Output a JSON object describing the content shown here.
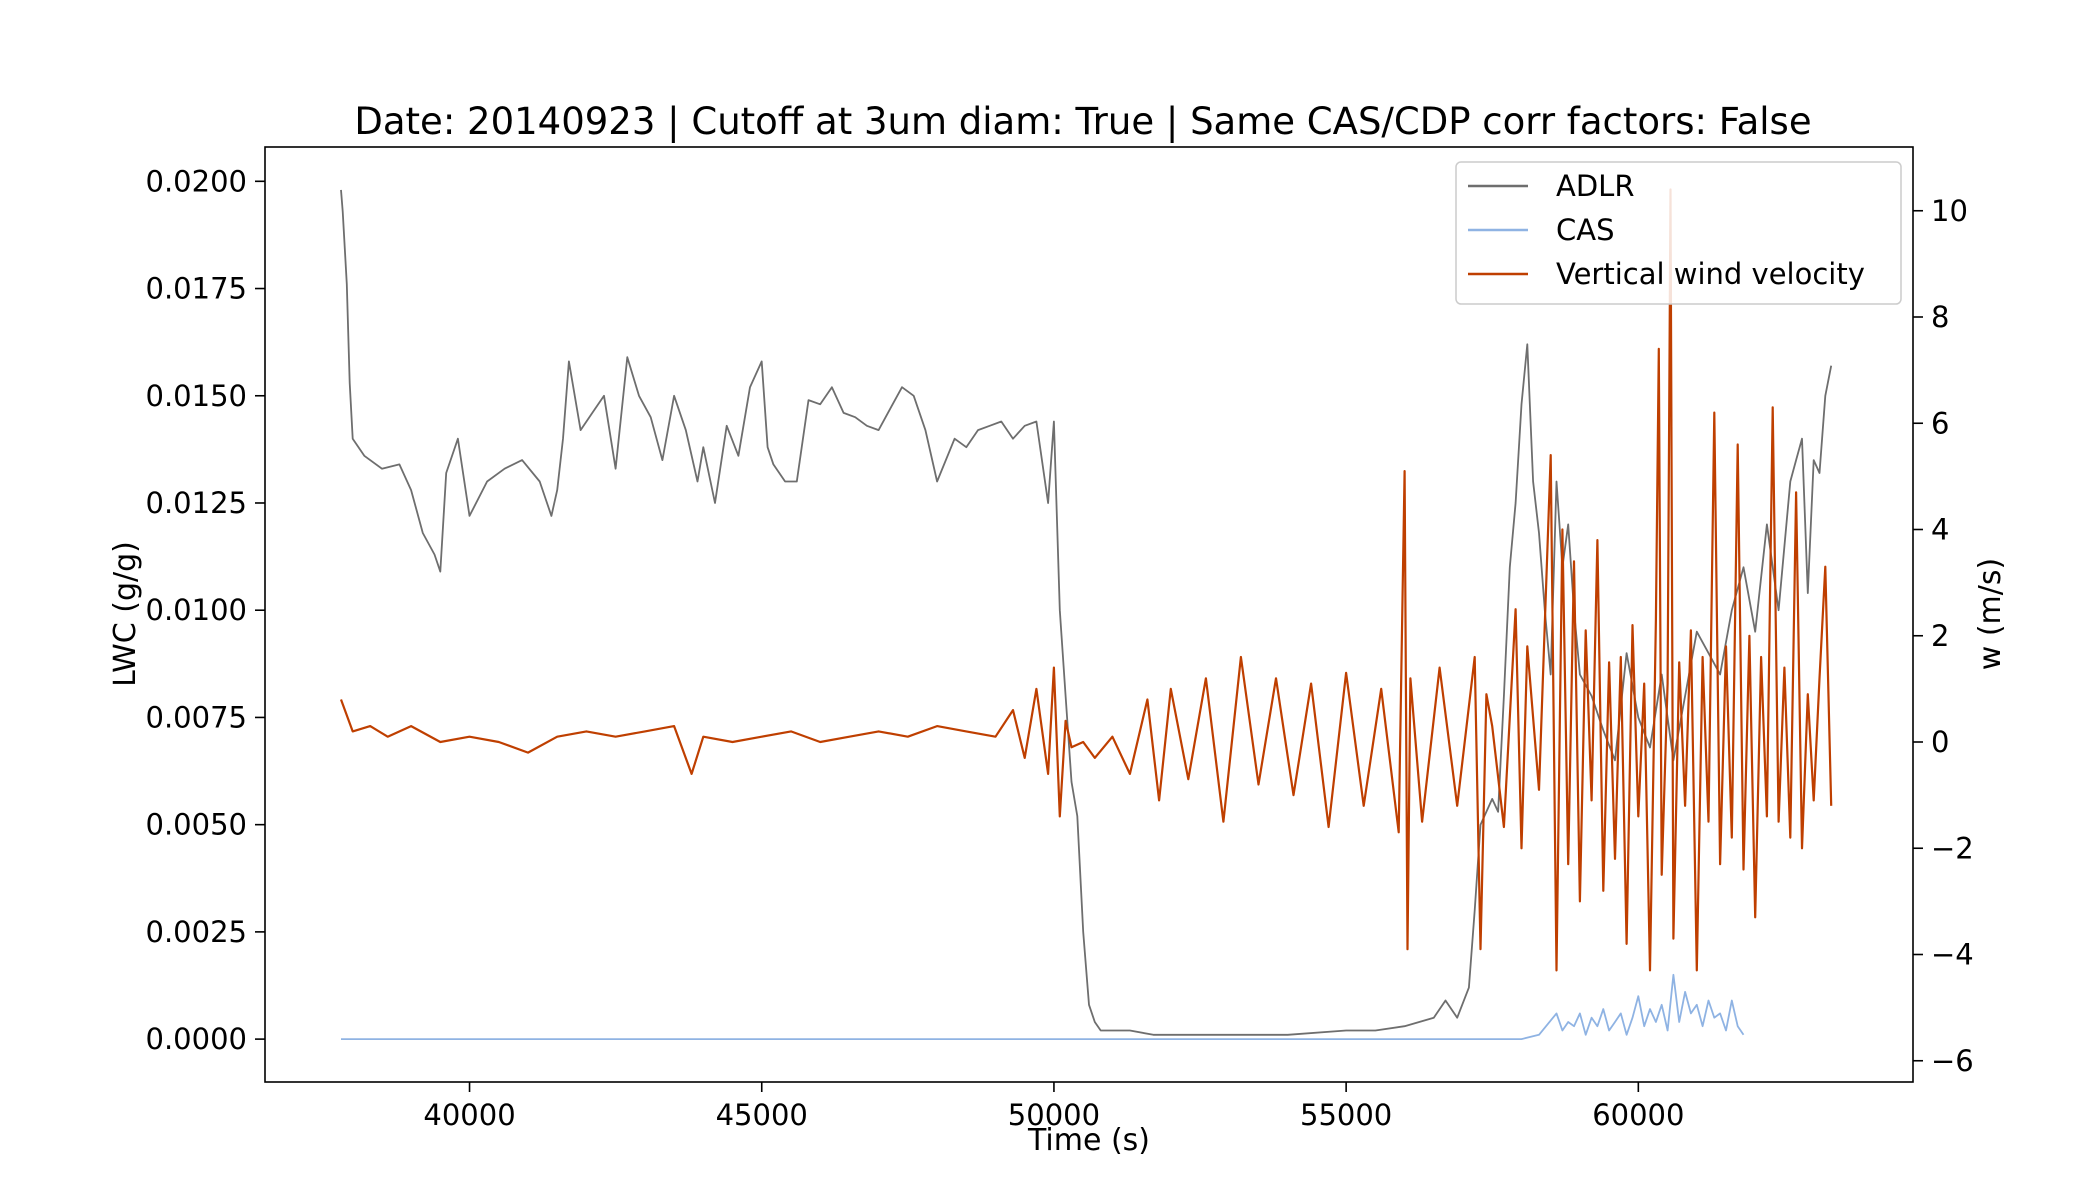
{
  "chart_data": {
    "type": "line",
    "title": "Date: 20140923 | Cutoff at 3um diam: True | Same CAS/CDP corr factors: False",
    "xlabel": "Time (s)",
    "ylabel": "LWC (g/g)",
    "y2label": "w (m/s)",
    "xlim": [
      36500,
      64700
    ],
    "ylim": [
      -0.001,
      0.0208
    ],
    "y2lim": [
      -6.4,
      11.2
    ],
    "x_ticks": [
      40000,
      45000,
      50000,
      55000,
      60000
    ],
    "x_tick_labels": [
      "40000",
      "45000",
      "50000",
      "55000",
      "60000"
    ],
    "y_ticks": [
      0.0,
      0.0025,
      0.005,
      0.0075,
      0.01,
      0.0125,
      0.015,
      0.0175,
      0.02
    ],
    "y_tick_labels": [
      "0.0000",
      "0.0025",
      "0.0050",
      "0.0075",
      "0.0100",
      "0.0125",
      "0.0150",
      "0.0175",
      "0.0200"
    ],
    "y2_ticks": [
      -6,
      -4,
      -2,
      0,
      2,
      4,
      6,
      8,
      10
    ],
    "y2_tick_labels": [
      "−6",
      "−4",
      "−2",
      "0",
      "2",
      "4",
      "6",
      "8",
      "10"
    ],
    "legend_position": "top-right",
    "grid": false,
    "series": [
      {
        "name": "ADLR",
        "axis": "left",
        "color": "#6e6e6e",
        "x": [
          37800,
          37830,
          37900,
          37950,
          38000,
          38200,
          38500,
          38800,
          39000,
          39200,
          39400,
          39500,
          39600,
          39800,
          40000,
          40300,
          40600,
          40900,
          41200,
          41400,
          41500,
          41600,
          41700,
          41900,
          42100,
          42300,
          42500,
          42700,
          42900,
          43100,
          43300,
          43500,
          43700,
          43900,
          44000,
          44200,
          44400,
          44600,
          44800,
          45000,
          45100,
          45200,
          45400,
          45600,
          45800,
          46000,
          46200,
          46400,
          46600,
          46800,
          47000,
          47200,
          47400,
          47600,
          47800,
          48000,
          48300,
          48500,
          48700,
          48900,
          49100,
          49300,
          49500,
          49700,
          49900,
          50000,
          50100,
          50200,
          50300,
          50400,
          50500,
          50600,
          50700,
          50800,
          51000,
          51300,
          51700,
          52000,
          53000,
          54000,
          55000,
          55500,
          56000,
          56500,
          56700,
          56900,
          57100,
          57200,
          57300,
          57500,
          57600,
          57700,
          57800,
          57900,
          58000,
          58100,
          58200,
          58300,
          58400,
          58500,
          58600,
          58700,
          58800,
          58900,
          59000,
          59200,
          59400,
          59600,
          59800,
          60000,
          60200,
          60400,
          60600,
          60800,
          61000,
          61200,
          61400,
          61600,
          61800,
          62000,
          62200,
          62400,
          62600,
          62700,
          62800,
          62900,
          63000,
          63100,
          63200,
          63300
        ],
        "values": [
          0.0198,
          0.0193,
          0.0176,
          0.0153,
          0.014,
          0.0136,
          0.0133,
          0.0134,
          0.0128,
          0.0118,
          0.0113,
          0.0109,
          0.0132,
          0.014,
          0.0122,
          0.013,
          0.0133,
          0.0135,
          0.013,
          0.0122,
          0.0128,
          0.014,
          0.0158,
          0.0142,
          0.0146,
          0.015,
          0.0133,
          0.0159,
          0.015,
          0.0145,
          0.0135,
          0.015,
          0.0142,
          0.013,
          0.0138,
          0.0125,
          0.0143,
          0.0136,
          0.0152,
          0.0158,
          0.0138,
          0.0134,
          0.013,
          0.013,
          0.0149,
          0.0148,
          0.0152,
          0.0146,
          0.0145,
          0.0143,
          0.0142,
          0.0147,
          0.0152,
          0.015,
          0.0142,
          0.013,
          0.014,
          0.0138,
          0.0142,
          0.0143,
          0.0144,
          0.014,
          0.0143,
          0.0144,
          0.0125,
          0.0144,
          0.01,
          0.008,
          0.006,
          0.0052,
          0.0025,
          0.0008,
          0.0004,
          0.0002,
          0.0002,
          0.0002,
          0.0001,
          0.0001,
          0.0001,
          0.0001,
          0.0002,
          0.0002,
          0.0003,
          0.0005,
          0.0009,
          0.0005,
          0.0012,
          0.003,
          0.005,
          0.0056,
          0.0053,
          0.008,
          0.011,
          0.0125,
          0.0148,
          0.0162,
          0.013,
          0.0118,
          0.01,
          0.0085,
          0.013,
          0.011,
          0.012,
          0.01,
          0.0085,
          0.008,
          0.0072,
          0.0065,
          0.009,
          0.0075,
          0.0068,
          0.0085,
          0.0065,
          0.008,
          0.0095,
          0.009,
          0.0085,
          0.01,
          0.011,
          0.0095,
          0.012,
          0.01,
          0.013,
          0.0135,
          0.014,
          0.0104,
          0.0135,
          0.0132,
          0.015,
          0.0157
        ]
      },
      {
        "name": "CAS",
        "axis": "left",
        "color": "#8fb3e3",
        "x": [
          37800,
          49000,
          50000,
          51000,
          52000,
          53000,
          54000,
          55000,
          56000,
          57000,
          57500,
          58000,
          58300,
          58600,
          58700,
          58800,
          58900,
          59000,
          59100,
          59200,
          59300,
          59400,
          59500,
          59600,
          59700,
          59800,
          59900,
          60000,
          60100,
          60200,
          60300,
          60400,
          60500,
          60600,
          60700,
          60800,
          60900,
          61000,
          61100,
          61200,
          61300,
          61400,
          61500,
          61600,
          61700,
          61800
        ],
        "values": [
          0.0,
          0.0,
          0.0,
          0.0,
          0.0,
          0.0,
          0.0,
          0.0,
          0.0,
          0.0,
          0.0,
          0.0,
          0.0001,
          0.0006,
          0.0002,
          0.0004,
          0.0003,
          0.0006,
          0.0001,
          0.0005,
          0.0003,
          0.0007,
          0.0002,
          0.0004,
          0.0006,
          0.0001,
          0.0005,
          0.001,
          0.0003,
          0.0007,
          0.0004,
          0.0008,
          0.0002,
          0.0015,
          0.0004,
          0.0011,
          0.0006,
          0.0008,
          0.0003,
          0.0009,
          0.0005,
          0.0006,
          0.0002,
          0.0009,
          0.0003,
          0.0001
        ]
      },
      {
        "name": "Vertical wind velocity",
        "axis": "right",
        "color": "#bf3f00",
        "x": [
          37800,
          38000,
          38300,
          38600,
          39000,
          39500,
          40000,
          40500,
          41000,
          41500,
          42000,
          42500,
          43000,
          43500,
          43800,
          44000,
          44500,
          45000,
          45500,
          46000,
          46500,
          47000,
          47500,
          48000,
          48500,
          49000,
          49300,
          49500,
          49700,
          49900,
          50000,
          50100,
          50200,
          50300,
          50500,
          50700,
          51000,
          51300,
          51600,
          51800,
          52000,
          52300,
          52600,
          52900,
          53200,
          53500,
          53800,
          54100,
          54400,
          54700,
          55000,
          55300,
          55600,
          55900,
          56000,
          56050,
          56100,
          56300,
          56600,
          56900,
          57200,
          57300,
          57400,
          57500,
          57700,
          57900,
          58000,
          58100,
          58300,
          58500,
          58600,
          58700,
          58800,
          58900,
          59000,
          59100,
          59200,
          59300,
          59400,
          59500,
          59600,
          59700,
          59800,
          59900,
          60000,
          60100,
          60200,
          60300,
          60350,
          60400,
          60500,
          60550,
          60600,
          60700,
          60800,
          60900,
          61000,
          61100,
          61200,
          61300,
          61400,
          61500,
          61600,
          61700,
          61800,
          61900,
          62000,
          62100,
          62200,
          62300,
          62400,
          62500,
          62600,
          62700,
          62800,
          62900,
          63000,
          63100,
          63200,
          63300
        ],
        "values": [
          0.8,
          0.2,
          0.3,
          0.1,
          0.3,
          0.0,
          0.1,
          0.0,
          -0.2,
          0.1,
          0.2,
          0.1,
          0.2,
          0.3,
          -0.6,
          0.1,
          0.0,
          0.1,
          0.2,
          0.0,
          0.1,
          0.2,
          0.1,
          0.3,
          0.2,
          0.1,
          0.6,
          -0.3,
          1.0,
          -0.6,
          1.4,
          -1.4,
          0.4,
          -0.1,
          0.0,
          -0.3,
          0.1,
          -0.6,
          0.8,
          -1.1,
          1.0,
          -0.7,
          1.2,
          -1.5,
          1.6,
          -0.8,
          1.2,
          -1.0,
          1.1,
          -1.6,
          1.3,
          -1.2,
          1.0,
          -1.7,
          5.1,
          -3.9,
          1.2,
          -1.5,
          1.4,
          -1.2,
          1.6,
          -3.9,
          0.9,
          0.3,
          -1.6,
          2.5,
          -2.0,
          1.8,
          -0.9,
          5.4,
          -4.3,
          4.0,
          -2.3,
          3.4,
          -3.0,
          2.1,
          -1.1,
          3.8,
          -2.8,
          1.5,
          -2.2,
          1.6,
          -3.8,
          2.2,
          -1.4,
          1.1,
          -4.3,
          2.3,
          7.4,
          -2.5,
          1.1,
          10.4,
          -3.7,
          1.5,
          -1.2,
          2.1,
          -4.3,
          1.6,
          -1.5,
          6.2,
          -2.3,
          1.8,
          -1.8,
          5.6,
          -2.4,
          2.0,
          -3.3,
          1.6,
          -1.4,
          6.3,
          -1.5,
          1.4,
          -1.8,
          4.7,
          -2.0,
          0.9,
          -1.1,
          1.2,
          3.3,
          -1.2
        ]
      }
    ]
  }
}
